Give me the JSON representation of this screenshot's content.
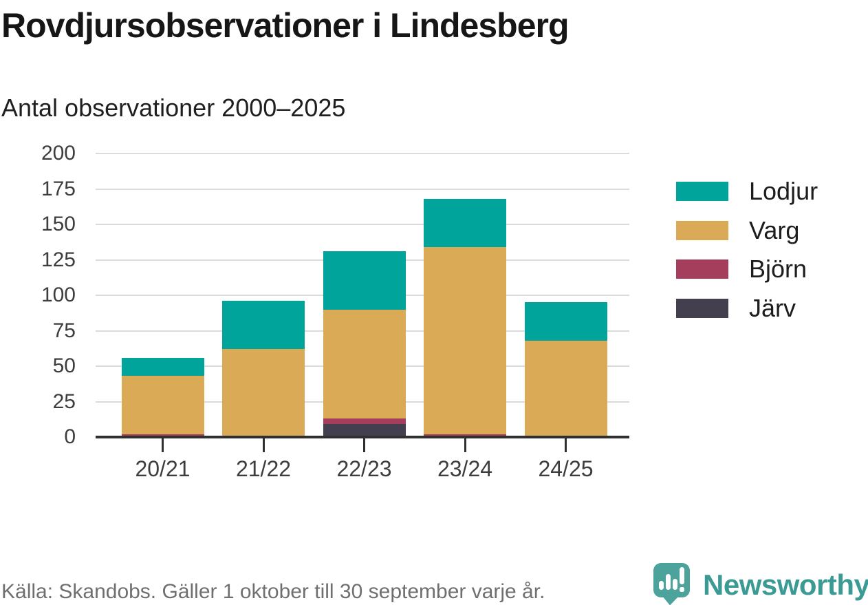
{
  "header": {
    "title": "Rovdjursobservationer i Lindesberg",
    "subtitle": "Antal observationer 2000–2025"
  },
  "chart_data": {
    "type": "bar",
    "stacked": true,
    "title": "Rovdjursobservationer i Lindesberg",
    "subtitle": "Antal observationer 2000–2025",
    "categories": [
      "20/21",
      "21/22",
      "22/23",
      "23/24",
      "24/25"
    ],
    "series": [
      {
        "name": "Järv",
        "color": "#433F4F",
        "values": [
          0,
          0,
          9,
          0,
          0
        ]
      },
      {
        "name": "Björn",
        "color": "#A43E5C",
        "values": [
          2,
          0,
          4,
          2,
          0
        ]
      },
      {
        "name": "Varg",
        "color": "#DAAA56",
        "values": [
          41,
          62,
          77,
          132,
          68
        ]
      },
      {
        "name": "Lodjur",
        "color": "#00A49A",
        "values": [
          13,
          34,
          41,
          34,
          27
        ]
      }
    ],
    "totals": [
      56,
      96,
      131,
      168,
      95
    ],
    "xlabel": "",
    "ylabel": "",
    "ylim": [
      0,
      200
    ],
    "yticks": [
      0,
      25,
      50,
      75,
      100,
      125,
      150,
      175,
      200
    ],
    "grid": true,
    "legend_position": "right"
  },
  "legend": {
    "items": [
      {
        "label": "Lodjur",
        "color": "#00A49A"
      },
      {
        "label": "Varg",
        "color": "#DAAA56"
      },
      {
        "label": "Björn",
        "color": "#A43E5C"
      },
      {
        "label": "Järv",
        "color": "#433F4F"
      }
    ]
  },
  "footer": {
    "source": "Källa: Skandobs. Gäller 1 oktober till 30 september varje år.",
    "brand": "Newsworthy"
  },
  "colors": {
    "accent_teal": "#00A49A",
    "gold": "#DAAA56",
    "maroon": "#A43E5C",
    "dark_slate": "#433F4F",
    "axis": "#303030",
    "gridline": "#DBDBDB",
    "brand_teal": "#3B9B94",
    "bubble_teal": "#4BA39C",
    "footer_text": "#6F6F6F"
  }
}
